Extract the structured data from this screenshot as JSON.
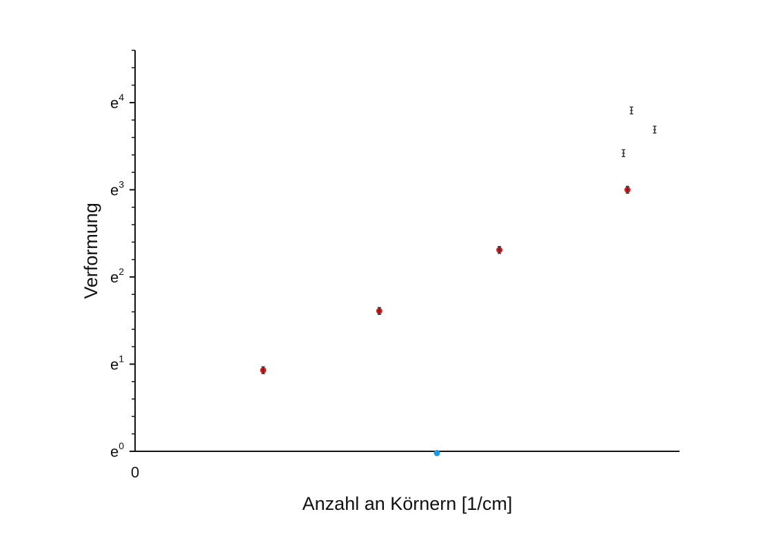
{
  "chart_data": {
    "type": "scatter",
    "title": "",
    "xlabel": "Anzahl an Körnern [1/cm]",
    "ylabel": "Verformung",
    "x_tick_labels": [
      "0"
    ],
    "y_scale": "log (base e)",
    "y_ticks": [
      {
        "base": "e",
        "exp": "0",
        "value": 0
      },
      {
        "base": "e",
        "exp": "1",
        "value": 1
      },
      {
        "base": "e",
        "exp": "2",
        "value": 2
      },
      {
        "base": "e",
        "exp": "3",
        "value": 3
      },
      {
        "base": "e",
        "exp": "4",
        "value": 4
      }
    ],
    "xlim": [
      0,
      6.8
    ],
    "ylim_log": [
      0,
      4.6
    ],
    "grid": false,
    "legend": "none",
    "series": [
      {
        "color": "#e31a1c",
        "marker": "filled-circle",
        "points": [
          {
            "x": 1.6,
            "y_log": 0.93
          },
          {
            "x": 3.05,
            "y_log": 1.61
          },
          {
            "x": 4.55,
            "y_log": 2.31
          },
          {
            "x": 6.15,
            "y_log": 3.0
          }
        ]
      },
      {
        "color": "#333333",
        "marker": "error-bar",
        "points": [
          {
            "x": 1.6,
            "y_log": 0.93
          },
          {
            "x": 3.05,
            "y_log": 1.61
          },
          {
            "x": 4.55,
            "y_log": 2.31
          },
          {
            "x": 6.15,
            "y_log": 3.0
          },
          {
            "x": 6.1,
            "y_log": 3.42
          },
          {
            "x": 6.2,
            "y_log": 3.91
          },
          {
            "x": 6.49,
            "y_log": 3.69
          }
        ]
      },
      {
        "color": "#1a9be0",
        "marker": "filled-circle",
        "points": [
          {
            "x": 3.77,
            "y_log": -0.02
          }
        ]
      }
    ]
  }
}
